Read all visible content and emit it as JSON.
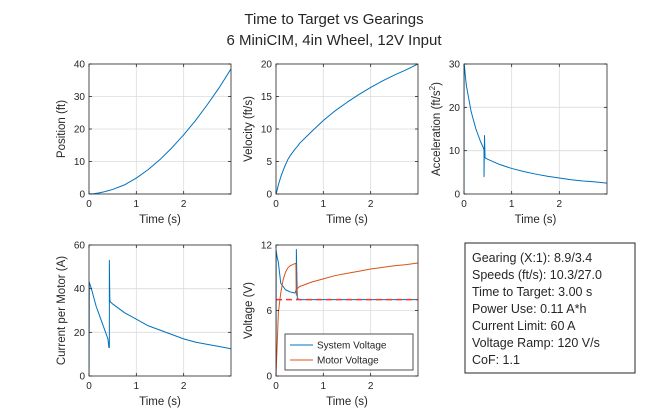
{
  "figure": {
    "title": "Time to Target vs Gearings",
    "subtitle": "6 MiniCIM, 4in Wheel, 12V Input"
  },
  "colors": {
    "blue": "#0072BD",
    "orange": "#D95319",
    "red_dashed": "#FF3333",
    "grid": "#DCDCDC",
    "axis": "#262626"
  },
  "chart_data": [
    {
      "type": "line",
      "xlabel": "Time (s)",
      "ylabel": "Position (ft)",
      "xlim": [
        0,
        3
      ],
      "ylim": [
        0,
        40
      ],
      "xticks": [
        0,
        1,
        2
      ],
      "yticks": [
        0,
        10,
        20,
        30,
        40
      ],
      "grid": true,
      "series": [
        {
          "color": "blue",
          "x": [
            0,
            0.1,
            0.2,
            0.3,
            0.4,
            0.5,
            0.75,
            1.0,
            1.25,
            1.5,
            1.75,
            2.0,
            2.25,
            2.5,
            2.75,
            3.0
          ],
          "y": [
            0,
            0.08,
            0.3,
            0.6,
            1.0,
            1.4,
            2.8,
            4.9,
            7.5,
            10.6,
            14.2,
            18.2,
            22.6,
            27.5,
            32.7,
            38.5
          ]
        }
      ]
    },
    {
      "type": "line",
      "xlabel": "Time (s)",
      "ylabel": "Velocity (ft/s)",
      "xlim": [
        0,
        3
      ],
      "ylim": [
        0,
        20
      ],
      "xticks": [
        0,
        1,
        2
      ],
      "yticks": [
        0,
        5,
        10,
        15,
        20
      ],
      "grid": true,
      "series": [
        {
          "color": "blue",
          "x": [
            0,
            0.02,
            0.05,
            0.1,
            0.15,
            0.2,
            0.25,
            0.3,
            0.35,
            0.4,
            0.45,
            0.5,
            0.75,
            1.0,
            1.25,
            1.5,
            1.75,
            2.0,
            2.25,
            2.5,
            2.75,
            3.0
          ],
          "y": [
            0,
            0.5,
            1.4,
            2.6,
            3.6,
            4.5,
            5.3,
            5.9,
            6.4,
            6.9,
            7.3,
            7.8,
            9.6,
            11.3,
            12.8,
            14.1,
            15.3,
            16.4,
            17.4,
            18.3,
            19.1,
            20.0
          ]
        }
      ]
    },
    {
      "type": "line",
      "xlabel": "Time (s)",
      "ylabel": "Acceleration (ft/s",
      "ylabel_superscript": "2",
      "ylabel_suffix": ")",
      "xlim": [
        0,
        3
      ],
      "ylim": [
        0,
        30
      ],
      "xticks": [
        0,
        1,
        2
      ],
      "yticks": [
        0,
        10,
        20,
        30
      ],
      "grid": true,
      "series": [
        {
          "color": "blue",
          "x": [
            0,
            0.001,
            0.01,
            0.03,
            0.05,
            0.1,
            0.15,
            0.2,
            0.25,
            0.3,
            0.35,
            0.4,
            0.42,
            0.42,
            0.43,
            0.44,
            0.44,
            0.45,
            0.5,
            0.75,
            1.0,
            1.25,
            1.5,
            1.75,
            2.0,
            2.25,
            2.5,
            2.75,
            3.0
          ],
          "y": [
            0,
            30,
            29.5,
            27,
            25,
            22,
            19,
            17,
            15,
            13.5,
            12,
            10.8,
            10.2,
            4,
            13.5,
            9,
            8.5,
            8.3,
            8.0,
            6.8,
            5.9,
            5.2,
            4.6,
            4.1,
            3.7,
            3.3,
            3.0,
            2.8,
            2.5
          ]
        }
      ]
    },
    {
      "type": "line",
      "xlabel": "Time (s)",
      "ylabel": "Current per Motor (A)",
      "xlim": [
        0,
        3
      ],
      "ylim": [
        0,
        60
      ],
      "xticks": [
        0,
        1,
        2
      ],
      "yticks": [
        0,
        20,
        40,
        60
      ],
      "grid": true,
      "series": [
        {
          "color": "blue",
          "x": [
            0,
            0.005,
            0.02,
            0.05,
            0.1,
            0.15,
            0.2,
            0.25,
            0.3,
            0.35,
            0.4,
            0.42,
            0.43,
            0.43,
            0.44,
            0.45,
            0.5,
            0.75,
            1.0,
            1.25,
            1.5,
            1.75,
            2.0,
            2.25,
            2.5,
            2.75,
            3.0
          ],
          "y": [
            0,
            43,
            42,
            40,
            36,
            32,
            29,
            26,
            23,
            20,
            17,
            13,
            13,
            53,
            35,
            34,
            33,
            29,
            26,
            23,
            21,
            19,
            17,
            15.5,
            14.5,
            13.5,
            12.5
          ]
        }
      ]
    },
    {
      "type": "line",
      "xlabel": "Time (s)",
      "ylabel": "Voltage (V)",
      "xlim": [
        0,
        3
      ],
      "ylim": [
        0,
        12
      ],
      "xticks": [
        0,
        1,
        2
      ],
      "yticks": [
        0,
        6,
        12
      ],
      "grid": true,
      "legend": {
        "placement": "bottom-right",
        "entries": [
          "System Voltage",
          "Motor Voltage"
        ]
      },
      "series": [
        {
          "name": "System Voltage",
          "color": "blue",
          "dashed": false,
          "x": [
            0,
            0.003,
            0.02,
            0.05,
            0.1,
            0.2,
            0.3,
            0.4,
            0.42,
            0.43,
            0.43,
            0.45,
            0.5,
            1.0,
            1.5,
            2.0,
            2.5,
            3.0
          ],
          "y": [
            0,
            11.5,
            11.0,
            10.4,
            8.5,
            7.9,
            7.7,
            7.6,
            7.8,
            8.0,
            11.6,
            7.1,
            7.0,
            7.0,
            7.0,
            7.0,
            7.0,
            7.0
          ]
        },
        {
          "name": "Motor Voltage",
          "color": "orange",
          "dashed": false,
          "x": [
            0,
            0.05,
            0.1,
            0.15,
            0.2,
            0.25,
            0.3,
            0.35,
            0.4,
            0.42,
            0.43,
            0.44,
            0.45,
            0.5,
            0.75,
            1.0,
            1.25,
            1.5,
            1.75,
            2.0,
            2.25,
            2.5,
            2.75,
            3.0
          ],
          "y": [
            0,
            5.8,
            7.6,
            8.8,
            9.5,
            9.9,
            10.1,
            10.2,
            10.3,
            10.3,
            7.4,
            7.9,
            8.0,
            8.2,
            8.6,
            8.9,
            9.2,
            9.4,
            9.6,
            9.8,
            9.95,
            10.1,
            10.2,
            10.35
          ]
        },
        {
          "color": "red_dashed",
          "dashed": true,
          "x": [
            0,
            3
          ],
          "y": [
            7,
            7
          ]
        }
      ]
    }
  ],
  "info_box": {
    "lines": [
      "Gearing (X:1): 8.9/3.4",
      "Speeds (ft/s): 10.3/27.0",
      "Time to Target: 3.00 s",
      "Power Use: 0.11 A*h",
      "Current Limit: 60 A",
      "Voltage Ramp: 120 V/s",
      "CoF: 1.1"
    ]
  }
}
